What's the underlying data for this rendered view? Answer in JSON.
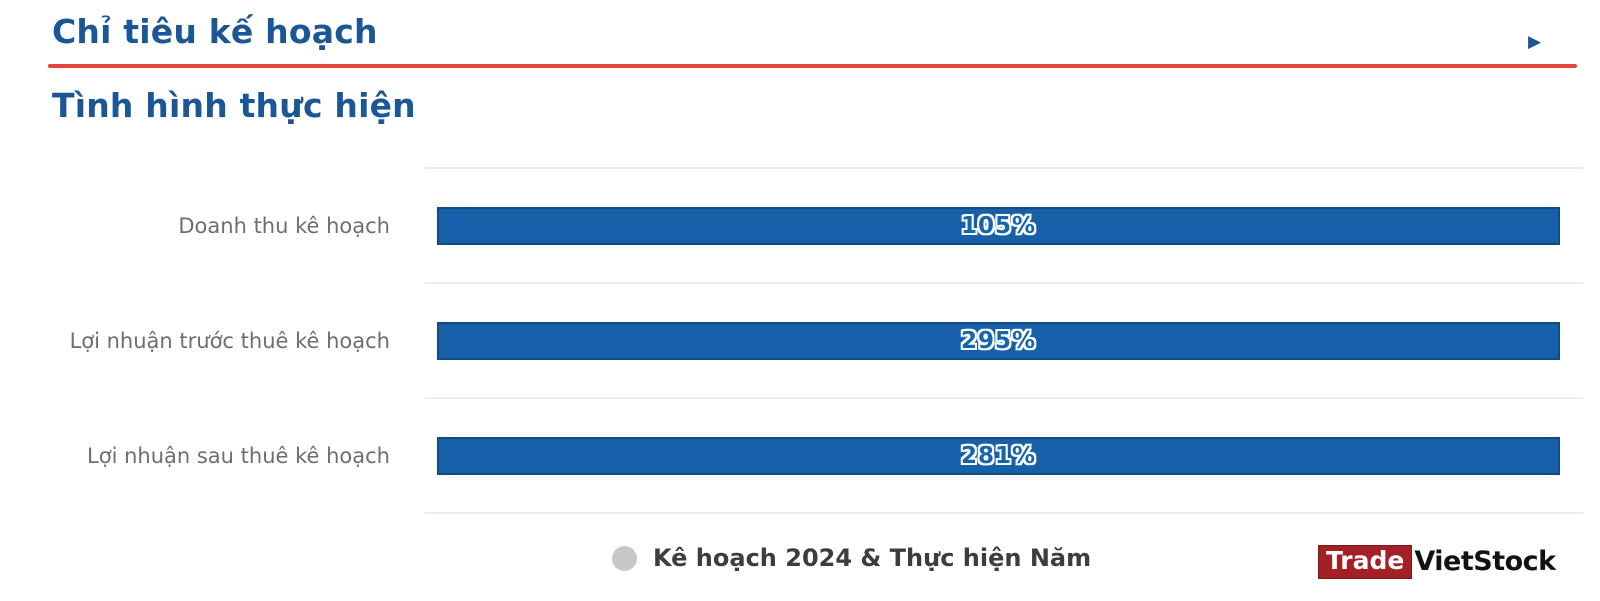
{
  "header": {
    "title": "Chỉ tiêu kế hoạch",
    "arrow_glyph": "▶"
  },
  "section": {
    "subtitle": "Tình hình thực hiện"
  },
  "chart_data": {
    "type": "bar",
    "orientation": "horizontal",
    "title": "Tình hình thực hiện",
    "categories": [
      "Doanh thu kê hoạch",
      "Lợi nhuận trước thuê kê hoạch",
      "Lợi nhuận sau thuê kê hoạch"
    ],
    "values": [
      105,
      295,
      281
    ],
    "value_labels": [
      "105%",
      "295%",
      "281%"
    ],
    "unit": "%",
    "bars_rendered_equal_full_width": true,
    "bar_color": "#175fa8",
    "bar_border_color": "#134a80",
    "value_text_style": "blue fill with white outline, centered in bar",
    "grid": true,
    "gridline_color": "#ededed",
    "legend": {
      "label": "Kê hoạch 2024 & Thực hiện Năm",
      "marker_color": "#c8c8c8",
      "position": "bottom"
    }
  },
  "branding": {
    "logo_trade": "Trade",
    "logo_vietstock": "VietStock",
    "logo_red": "#a32026"
  },
  "colors": {
    "heading_blue": "#1b5796",
    "rule_red": "#e2453c",
    "label_gray": "#6e6e6e",
    "legend_text": "#3d3d3d"
  }
}
